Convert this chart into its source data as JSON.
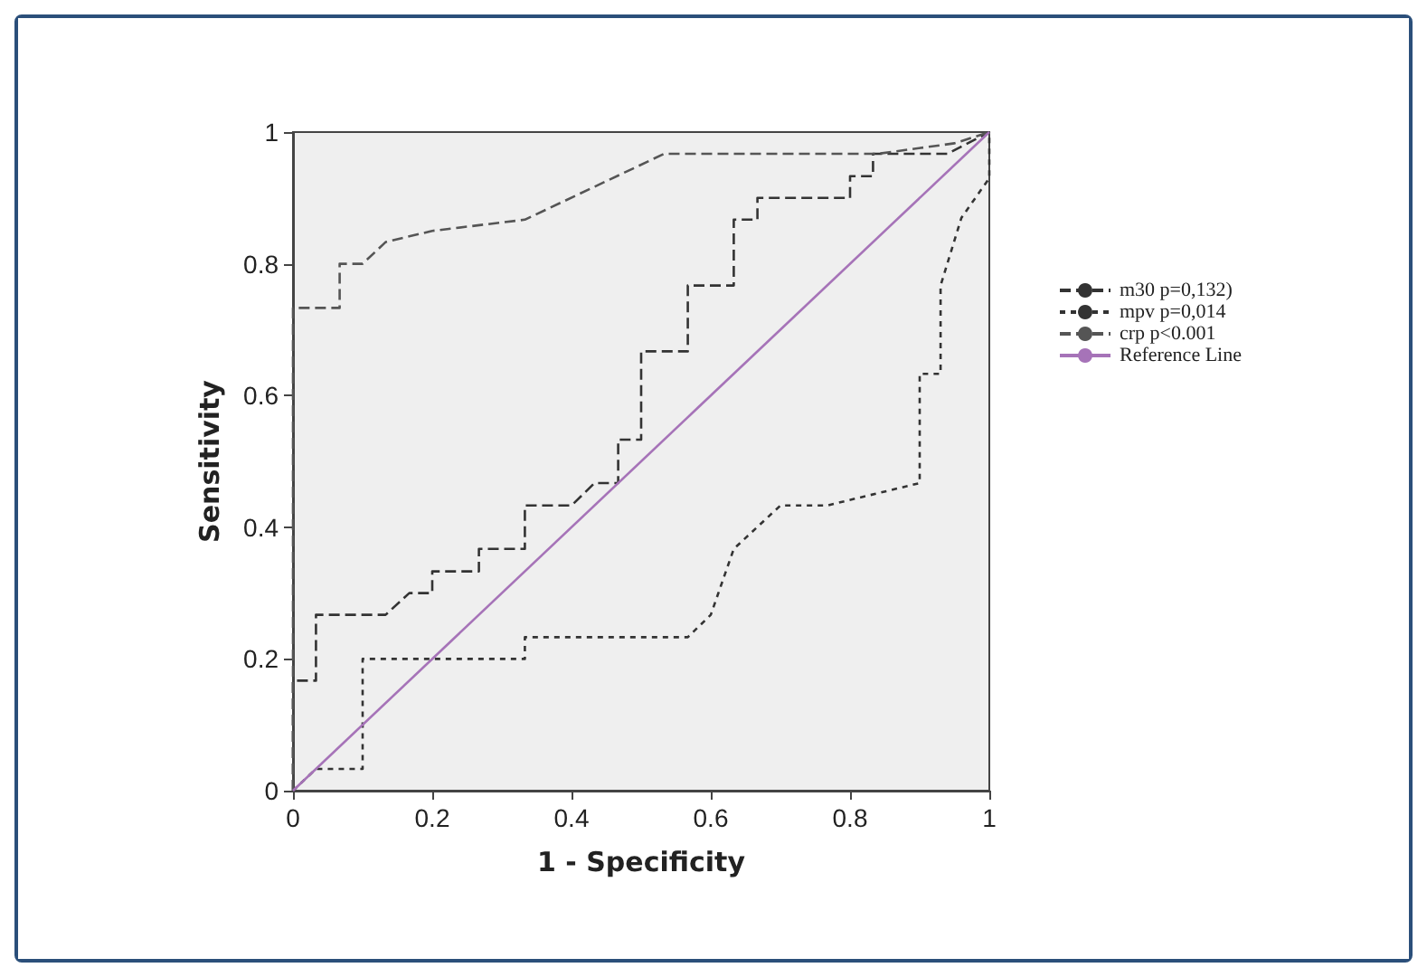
{
  "chart_data": {
    "type": "line",
    "xlabel": "1 - Specificity",
    "ylabel": "Sensitivity",
    "xlim": [
      0,
      1
    ],
    "ylim": [
      0,
      1
    ],
    "xticks": [
      0,
      0.2,
      0.4,
      0.6,
      0.8,
      1
    ],
    "yticks": [
      0,
      0.2,
      0.4,
      0.6,
      0.8,
      1
    ],
    "grid": false,
    "legend": "right",
    "marker": "none",
    "series": [
      {
        "name": "m30 p=0,132)",
        "color": "#333333",
        "line_style": "dashed",
        "x": [
          0,
          0,
          0.033,
          0.033,
          0.133,
          0.167,
          0.167,
          0.2,
          0.2,
          0.267,
          0.267,
          0.333,
          0.333,
          0.4,
          0.433,
          0.467,
          0.467,
          0.5,
          0.5,
          0.567,
          0.567,
          0.633,
          0.633,
          0.667,
          0.667,
          0.8,
          0.8,
          0.833,
          0.833,
          0.94,
          1
        ],
        "values": [
          0,
          0.167,
          0.167,
          0.267,
          0.267,
          0.3,
          0.3,
          0.3,
          0.333,
          0.333,
          0.367,
          0.367,
          0.433,
          0.433,
          0.467,
          0.467,
          0.533,
          0.533,
          0.667,
          0.667,
          0.767,
          0.767,
          0.867,
          0.867,
          0.9,
          0.9,
          0.933,
          0.933,
          0.967,
          0.967,
          1
        ]
      },
      {
        "name": "mpv p=0,014",
        "color": "#333333",
        "line_style": "dotted",
        "x": [
          0,
          0.033,
          0.1,
          0.1,
          0.333,
          0.333,
          0.567,
          0.6,
          0.633,
          0.7,
          0.767,
          0.9,
          0.9,
          0.93,
          0.93,
          0.96,
          1,
          1
        ],
        "values": [
          0,
          0.033,
          0.033,
          0.2,
          0.2,
          0.233,
          0.233,
          0.267,
          0.367,
          0.433,
          0.433,
          0.467,
          0.633,
          0.633,
          0.767,
          0.87,
          0.93,
          1
        ]
      },
      {
        "name": "crp p<0.001",
        "color": "#555555",
        "line_style": "dashed",
        "x": [
          0,
          0,
          0.067,
          0.067,
          0.1,
          0.133,
          0.2,
          0.333,
          0.533,
          0.84,
          0.95,
          1
        ],
        "values": [
          0,
          0.733,
          0.733,
          0.8,
          0.8,
          0.833,
          0.85,
          0.867,
          0.967,
          0.967,
          0.983,
          1
        ]
      },
      {
        "name": "Reference Line",
        "color": "#a673b8",
        "line_style": "solid",
        "x": [
          0,
          1
        ],
        "values": [
          0,
          1
        ]
      }
    ]
  }
}
